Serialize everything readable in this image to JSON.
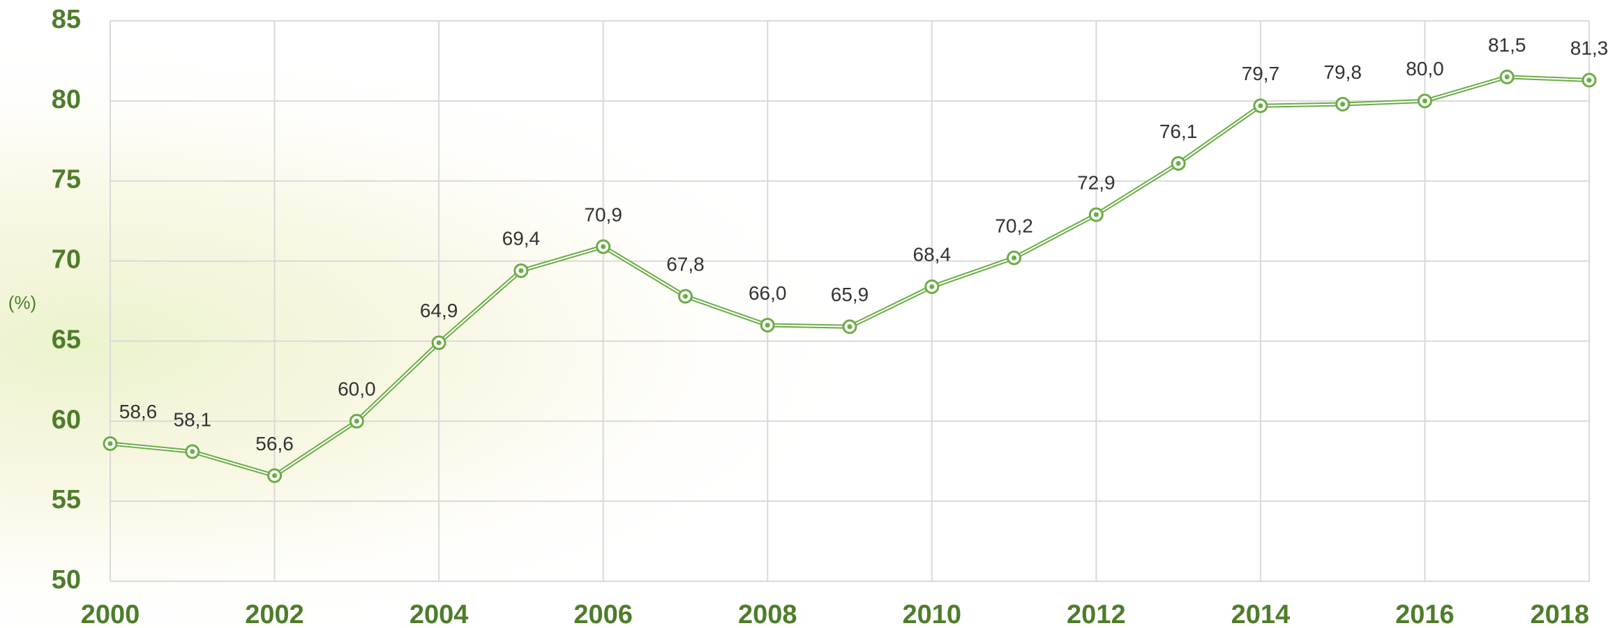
{
  "chart_data": {
    "type": "line",
    "y_label": "(%)",
    "x": [
      2000,
      2001,
      2002,
      2003,
      2004,
      2005,
      2006,
      2007,
      2008,
      2009,
      2010,
      2011,
      2012,
      2013,
      2014,
      2015,
      2016,
      2017,
      2018
    ],
    "series": [
      {
        "name": "",
        "color": "#6aac45",
        "values": [
          58.6,
          58.1,
          56.6,
          60.0,
          64.9,
          69.4,
          70.9,
          67.8,
          66.0,
          65.9,
          68.4,
          70.2,
          72.9,
          76.1,
          79.7,
          79.8,
          80.0,
          81.5,
          81.3
        ],
        "value_labels": [
          "58,6",
          "58,1",
          "56,6",
          "60,0",
          "64,9",
          "69,4",
          "70,9",
          "67,8",
          "66,0",
          "65,9",
          "68,4",
          "70,2",
          "72,9",
          "76,1",
          "79,7",
          "79,8",
          "80,0",
          "81,5",
          "81,3"
        ]
      }
    ],
    "xlim": [
      2000,
      2018
    ],
    "xticks": [
      2000,
      2002,
      2004,
      2006,
      2008,
      2010,
      2012,
      2014,
      2016,
      2018
    ],
    "ylim": [
      50,
      85
    ],
    "yticks": [
      50,
      55,
      60,
      65,
      70,
      75,
      80,
      85
    ],
    "grid": true
  }
}
